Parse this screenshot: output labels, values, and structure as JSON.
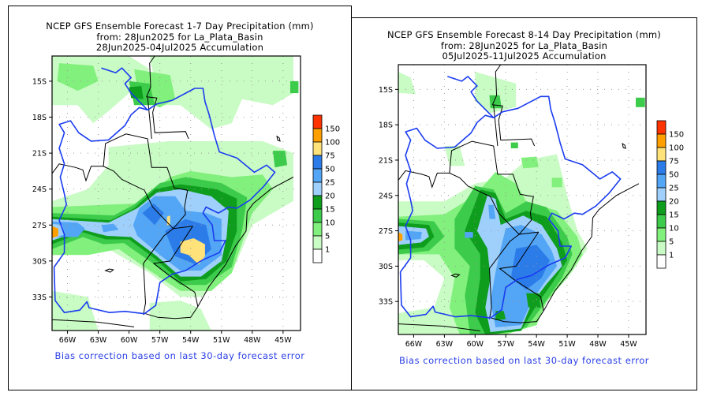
{
  "panels": [
    {
      "id": "week1",
      "title_lines": [
        "NCEP GFS Ensemble Forecast 1-7 Day Precipitation (mm)",
        "from: 28Jun2025   for La_Plata_Basin",
        "28Jun2025-04Jul2025 Accumulation"
      ],
      "footer": "Bias correction based on last 30-day forecast error"
    },
    {
      "id": "week2",
      "title_lines": [
        "NCEP GFS Ensemble Forecast 8-14 Day Precipitation (mm)",
        "from: 28Jun2025   for La_Plata_Basin",
        "05Jul2025-11Jul2025 Accumulation"
      ],
      "footer": "Bias correction based on last 30-day forecast error"
    }
  ],
  "axes": {
    "lat_ticks": [
      "15S",
      "18S",
      "21S",
      "24S",
      "27S",
      "30S",
      "33S"
    ],
    "lon_ticks": [
      "66W",
      "63W",
      "60W",
      "57W",
      "54W",
      "51W",
      "48W",
      "45W"
    ]
  },
  "legend": {
    "bins": [
      {
        "label": "150",
        "color": "#ff3300"
      },
      {
        "label": "100",
        "color": "#ffa000"
      },
      {
        "label": "75",
        "color": "#ffe27a"
      },
      {
        "label": "50",
        "color": "#2b7ce8"
      },
      {
        "label": "25",
        "color": "#53a5f5"
      },
      {
        "label": "20",
        "color": "#9ed0fb"
      },
      {
        "label": "15",
        "color": "#0f9d1e"
      },
      {
        "label": "10",
        "color": "#3ccb4a"
      },
      {
        "label": "5",
        "color": "#82f07c"
      },
      {
        "label": "1",
        "color": "#c9fbc4"
      },
      {
        "label": "",
        "color": "#ffffff"
      }
    ]
  },
  "colors": {
    "basin_outline": "#1a3cf0",
    "borders": "#000000",
    "footer_text": "#2a3fe6"
  }
}
